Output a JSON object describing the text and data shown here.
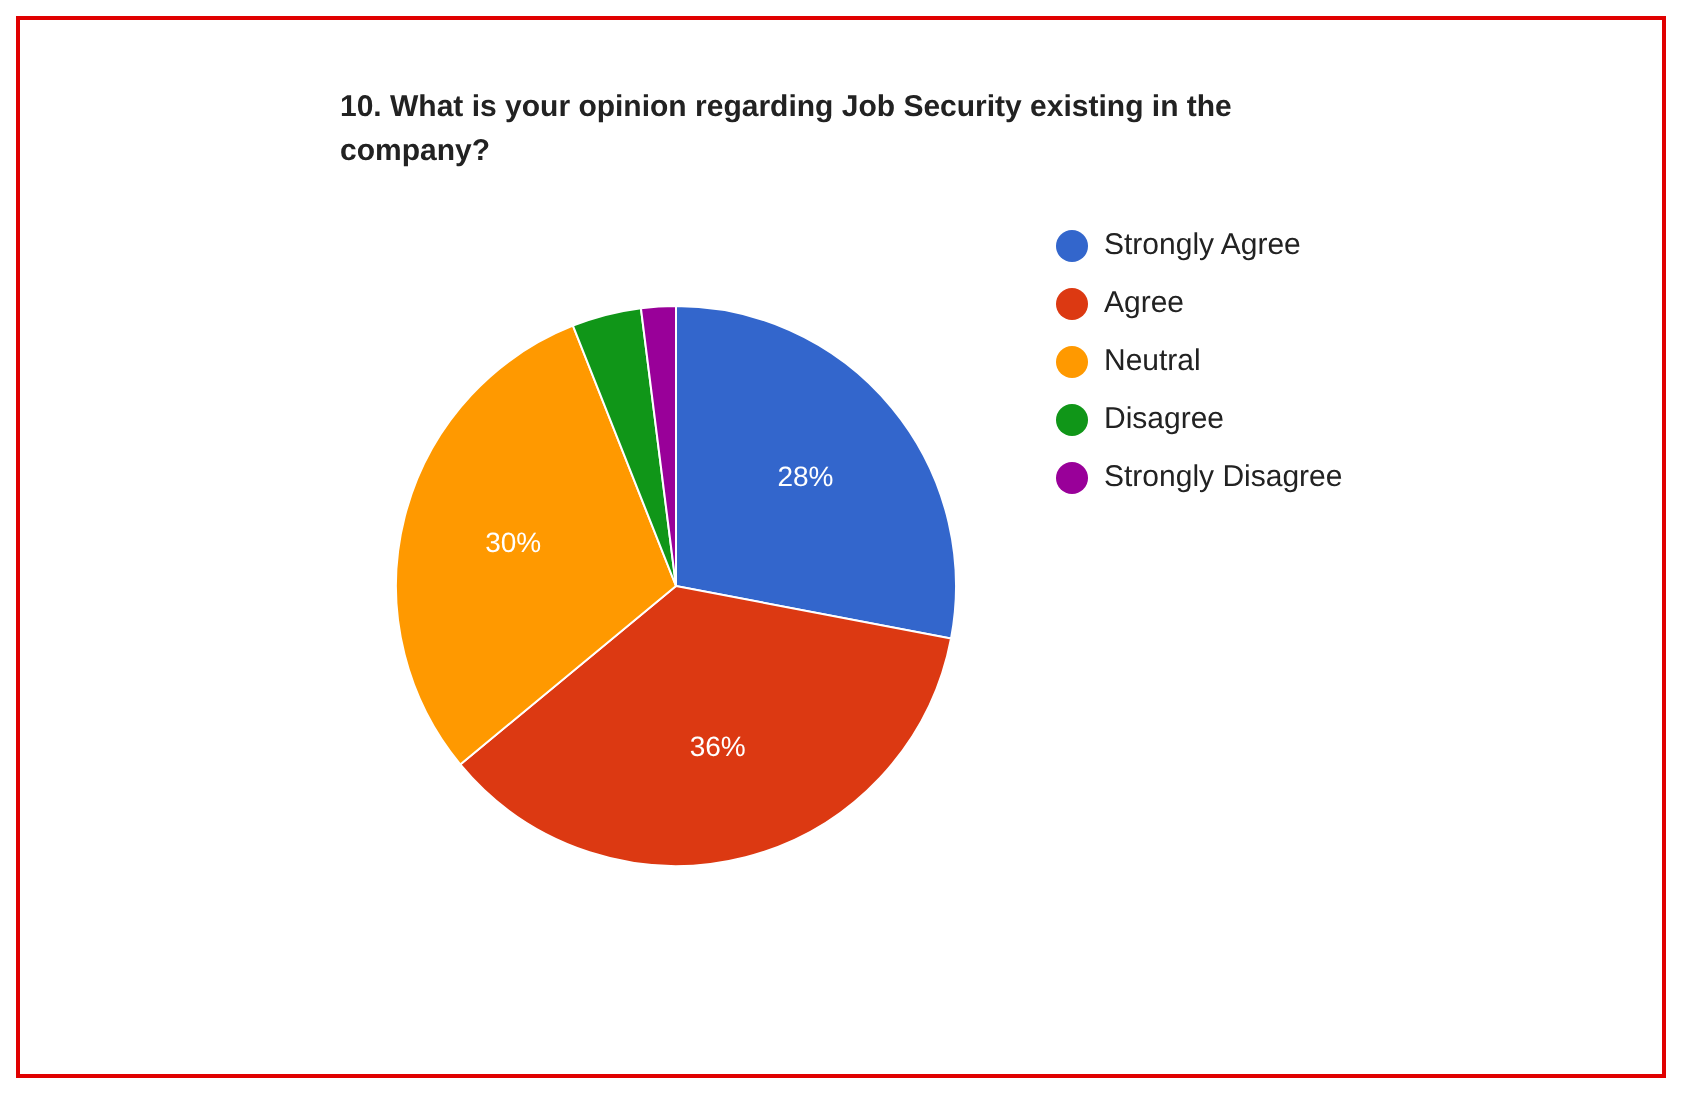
{
  "chart_data": {
    "type": "pie",
    "title": "10. What is your opinion regarding Job Security existing in the company?",
    "categories": [
      "Strongly Agree",
      "Agree",
      "Neutral",
      "Disagree",
      "Strongly Disagree"
    ],
    "values": [
      28,
      36,
      30,
      4,
      2
    ],
    "colors": [
      "#3366cc",
      "#dc3912",
      "#ff9900",
      "#109618",
      "#990099"
    ],
    "value_labels": [
      "28%",
      "36%",
      "30%",
      null,
      null
    ],
    "legend": "right"
  }
}
